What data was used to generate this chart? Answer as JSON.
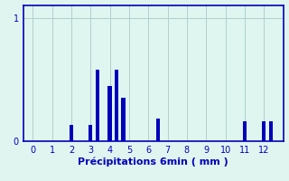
{
  "xlabel": "Précipitations 6min ( mm )",
  "background_color": "#e0f5f0",
  "plot_bg_color": "#dff5f0",
  "bar_color": "#0000bb",
  "grid_color": "#b0d0cc",
  "axis_color": "#0000bb",
  "xlim": [
    -0.5,
    13.0
  ],
  "ylim": [
    0,
    1.1
  ],
  "xticks": [
    0,
    1,
    2,
    3,
    4,
    5,
    6,
    7,
    8,
    9,
    10,
    11,
    12
  ],
  "yticks": [
    0,
    1
  ],
  "bar_positions": [
    2.0,
    3.0,
    3.35,
    4.0,
    4.35,
    4.7,
    6.5,
    11.0,
    12.0,
    12.35
  ],
  "bar_heights": [
    0.13,
    0.13,
    0.58,
    0.45,
    0.58,
    0.35,
    0.18,
    0.16,
    0.16,
    0.16
  ],
  "bar_width": 0.2,
  "xlabel_fontsize": 8,
  "tick_fontsize": 7
}
